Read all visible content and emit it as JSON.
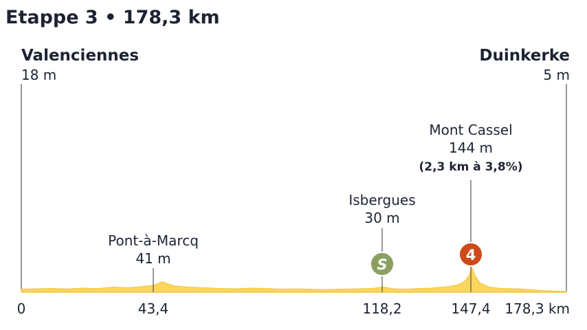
{
  "title": "Etappe 3 • 178,3 km",
  "colors": {
    "profile_fill": "#fbd65e",
    "profile_stroke": "#f3c53a",
    "sprint": "#8aa060",
    "climb": "#cf4a1a",
    "line": "#555555",
    "text": "#1d2333"
  },
  "start": {
    "name": "Valenciennes",
    "altitude": "18 m"
  },
  "finish": {
    "name": "Duinkerke",
    "altitude": "5 m"
  },
  "waypoints": [
    {
      "name": "Pont-à-Marcq",
      "altitude": "41 m",
      "km": 43.4,
      "km_label": "43,4"
    },
    {
      "name": "Isbergues",
      "altitude": "30 m",
      "km": 118.2,
      "km_label": "118,2",
      "marker": "sprint",
      "marker_text": "S"
    },
    {
      "name": "Mont Cassel",
      "altitude": "144 m",
      "detail": "(2,3 km à 3,8%)",
      "km": 147.4,
      "km_label": "147,4",
      "marker": "climb",
      "marker_text": "4"
    }
  ],
  "x_start_label": "0",
  "x_end_label": "178,3 km",
  "chart_data": {
    "type": "area",
    "title": "Etappe 3 • 178,3 km",
    "xlabel": "",
    "ylabel": "",
    "x_unit": "km",
    "y_unit": "m",
    "xlim": [
      0,
      178.3
    ],
    "ylim": [
      0,
      160
    ],
    "grid": false,
    "x": [
      0,
      5,
      10,
      15,
      20,
      25,
      30,
      35,
      40,
      42,
      43.4,
      46,
      50,
      55,
      60,
      65,
      70,
      75,
      80,
      85,
      90,
      95,
      100,
      105,
      110,
      115,
      118.2,
      122,
      126,
      130,
      134,
      138,
      141,
      143,
      145,
      146.5,
      147.4,
      148.5,
      150,
      153,
      157,
      162,
      166,
      170,
      174,
      178.3
    ],
    "y": [
      18,
      20,
      22,
      19,
      24,
      21,
      30,
      26,
      34,
      38,
      41,
      62,
      36,
      30,
      26,
      22,
      20,
      24,
      22,
      18,
      20,
      17,
      16,
      18,
      20,
      22,
      30,
      20,
      18,
      22,
      24,
      30,
      36,
      44,
      62,
      100,
      144,
      95,
      55,
      30,
      22,
      20,
      16,
      10,
      7,
      5
    ],
    "ticks": [
      {
        "value": 0,
        "label": "0"
      },
      {
        "value": 43.4,
        "label": "43,4"
      },
      {
        "value": 118.2,
        "label": "118,2"
      },
      {
        "value": 147.4,
        "label": "147,4"
      },
      {
        "value": 178.3,
        "label": "178,3 km"
      }
    ],
    "annotations": [
      {
        "label": "Valenciennes",
        "altitude": 18
      },
      {
        "label": "Pont-à-Marcq",
        "altitude": 41,
        "km": 43.4
      },
      {
        "label": "Isbergues",
        "altitude": 30,
        "km": 118.2,
        "marker": "S"
      },
      {
        "label": "Mont Cassel",
        "altitude": 144,
        "km": 147.4,
        "marker": "4",
        "climb_length_km": 2.3,
        "gradient_pct": 3.8
      },
      {
        "label": "Duinkerke",
        "altitude": 5
      }
    ]
  }
}
